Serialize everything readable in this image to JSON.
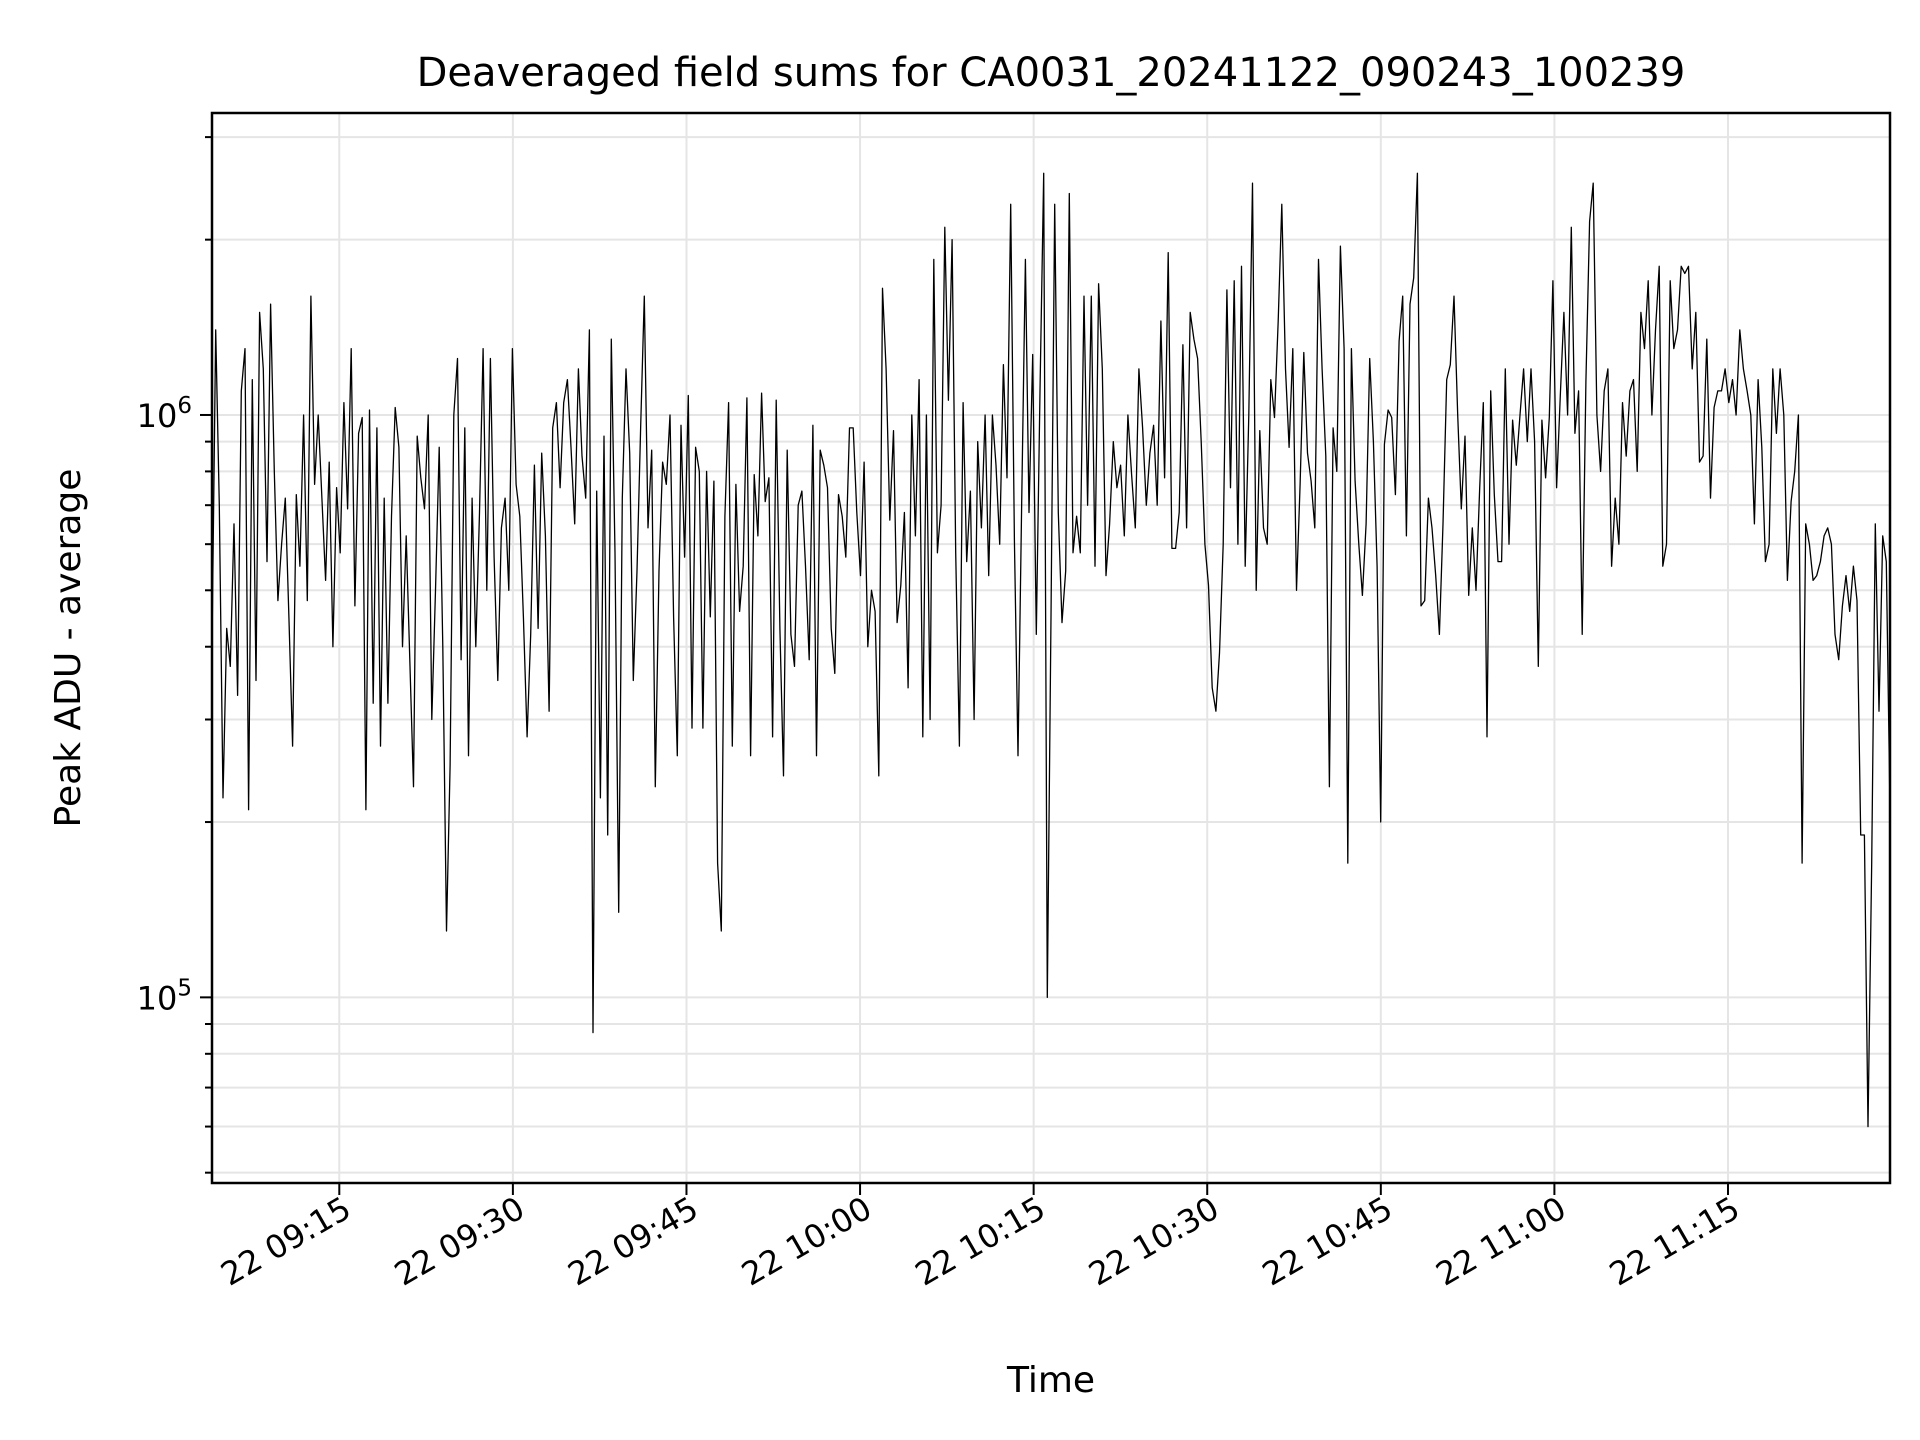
{
  "chart_data": {
    "type": "line",
    "title": "Deaveraged field sums for CA0031_20241122_090243_100239",
    "xlabel": "Time",
    "ylabel": "Peak ADU - average",
    "yscale": "log",
    "grid": true,
    "xlim": [
      "2024-11-22 09:04",
      "2024-11-22 11:29"
    ],
    "ylim": [
      48000,
      3300000
    ],
    "x_ticks": [
      "22 09:15",
      "22 09:30",
      "22 09:45",
      "22 10:00",
      "22 10:15",
      "22 10:30",
      "22 10:45",
      "22 11:00",
      "22 11:15"
    ],
    "y_ticks": [
      {
        "base": "10",
        "exp": "5",
        "value": 100000
      },
      {
        "base": "10",
        "exp": "6",
        "value": 1000000
      }
    ],
    "line_color": "#000000",
    "series": [
      {
        "x_start": "2024-11-22 09:04",
        "x_end": "2024-11-22 11:29",
        "values": [
          400000,
          1400000,
          700000,
          220000,
          430000,
          370000,
          650000,
          330000,
          1100000,
          1300000,
          210000,
          1150000,
          350000,
          1500000,
          1200000,
          560000,
          1550000,
          800000,
          480000,
          600000,
          720000,
          450000,
          270000,
          730000,
          550000,
          1000000,
          480000,
          1600000,
          760000,
          1000000,
          720000,
          520000,
          830000,
          400000,
          750000,
          580000,
          1050000,
          690000,
          1300000,
          470000,
          930000,
          990000,
          210000,
          1020000,
          320000,
          950000,
          270000,
          720000,
          320000,
          670000,
          1030000,
          880000,
          400000,
          620000,
          380000,
          230000,
          920000,
          780000,
          690000,
          1000000,
          300000,
          500000,
          880000,
          400000,
          130000,
          250000,
          1000000,
          1250000,
          380000,
          950000,
          260000,
          720000,
          400000,
          680000,
          1300000,
          500000,
          1250000,
          570000,
          350000,
          640000,
          720000,
          500000,
          1300000,
          760000,
          670000,
          450000,
          280000,
          420000,
          820000,
          430000,
          860000,
          620000,
          310000,
          950000,
          1050000,
          750000,
          1050000,
          1150000,
          880000,
          650000,
          1200000,
          850000,
          720000,
          1400000,
          87000,
          740000,
          220000,
          920000,
          190000,
          1350000,
          580000,
          140000,
          720000,
          1200000,
          860000,
          350000,
          540000,
          960000,
          1600000,
          640000,
          870000,
          230000,
          540000,
          830000,
          760000,
          1000000,
          450000,
          260000,
          960000,
          570000,
          1080000,
          290000,
          880000,
          800000,
          290000,
          800000,
          450000,
          770000,
          170000,
          130000,
          670000,
          1050000,
          270000,
          760000,
          460000,
          550000,
          1070000,
          260000,
          790000,
          620000,
          1090000,
          710000,
          780000,
          280000,
          1060000,
          430000,
          240000,
          870000,
          420000,
          370000,
          700000,
          740000,
          550000,
          380000,
          960000,
          260000,
          870000,
          820000,
          750000,
          430000,
          360000,
          730000,
          670000,
          570000,
          950000,
          950000,
          680000,
          530000,
          830000,
          400000,
          500000,
          460000,
          240000,
          1650000,
          1200000,
          660000,
          940000,
          440000,
          510000,
          680000,
          340000,
          1000000,
          620000,
          1150000,
          280000,
          1000000,
          300000,
          1850000,
          580000,
          700000,
          2100000,
          1060000,
          2000000,
          580000,
          270000,
          1050000,
          560000,
          740000,
          300000,
          900000,
          640000,
          1000000,
          530000,
          1000000,
          820000,
          600000,
          1220000,
          780000,
          2300000,
          610000,
          260000,
          710000,
          1850000,
          680000,
          1270000,
          420000,
          1100000,
          2600000,
          100000,
          450000,
          2300000,
          680000,
          440000,
          540000,
          2400000,
          580000,
          670000,
          580000,
          1600000,
          700000,
          1600000,
          550000,
          1680000,
          1200000,
          530000,
          650000,
          900000,
          750000,
          820000,
          620000,
          1000000,
          790000,
          640000,
          1200000,
          950000,
          700000,
          860000,
          960000,
          700000,
          1450000,
          780000,
          1900000,
          590000,
          590000,
          680000,
          1320000,
          640000,
          1500000,
          1350000,
          1250000,
          900000,
          600000,
          510000,
          340000,
          310000,
          390000,
          600000,
          1640000,
          750000,
          1700000,
          600000,
          1800000,
          550000,
          1000000,
          2500000,
          500000,
          940000,
          640000,
          600000,
          1150000,
          990000,
          1450000,
          2300000,
          1200000,
          880000,
          1300000,
          500000,
          760000,
          1280000,
          860000,
          770000,
          640000,
          1850000,
          1200000,
          850000,
          230000,
          950000,
          800000,
          1950000,
          1300000,
          170000,
          1300000,
          770000,
          600000,
          490000,
          650000,
          1250000,
          900000,
          550000,
          200000,
          890000,
          1020000,
          990000,
          730000,
          1340000,
          1600000,
          620000,
          1550000,
          1720000,
          2600000,
          470000,
          480000,
          720000,
          640000,
          530000,
          420000,
          650000,
          1150000,
          1220000,
          1600000,
          1000000,
          690000,
          920000,
          490000,
          640000,
          500000,
          750000,
          1050000,
          280000,
          1100000,
          730000,
          560000,
          560000,
          1200000,
          600000,
          980000,
          820000,
          1000000,
          1200000,
          900000,
          1200000,
          900000,
          370000,
          980000,
          780000,
          990000,
          1700000,
          750000,
          1080000,
          1500000,
          1000000,
          2100000,
          930000,
          1100000,
          420000,
          1140000,
          2150000,
          2500000,
          1000000,
          800000,
          1100000,
          1200000,
          550000,
          720000,
          600000,
          1050000,
          850000,
          1100000,
          1150000,
          800000,
          1500000,
          1300000,
          1700000,
          1000000,
          1400000,
          1800000,
          550000,
          600000,
          1700000,
          1300000,
          1400000,
          1800000,
          1750000,
          1800000,
          1200000,
          1500000,
          830000,
          850000,
          1350000,
          720000,
          1030000,
          1100000,
          1100000,
          1200000,
          1050000,
          1150000,
          1000000,
          1400000,
          1200000,
          1100000,
          1000000,
          650000,
          1150000,
          880000,
          560000,
          600000,
          1200000,
          930000,
          1200000,
          1000000,
          520000,
          710000,
          800000,
          1000000,
          170000,
          650000,
          600000,
          520000,
          530000,
          560000,
          620000,
          640000,
          600000,
          420000,
          380000,
          470000,
          530000,
          460000,
          550000,
          480000,
          190000,
          190000,
          60000,
          170000,
          650000,
          310000,
          620000,
          560000,
          210000
        ]
      }
    ]
  }
}
